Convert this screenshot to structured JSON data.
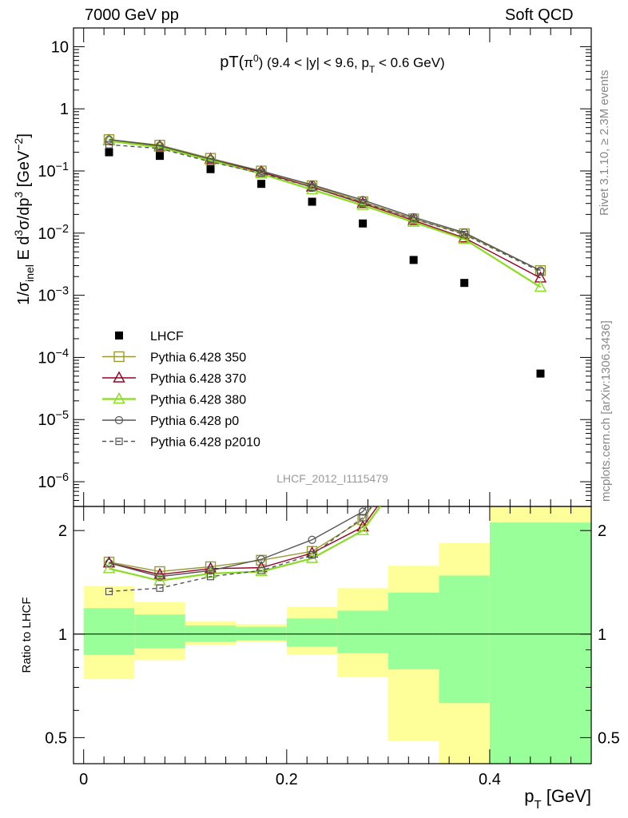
{
  "header": {
    "left": "7000 GeV pp",
    "right": "Soft QCD"
  },
  "side_labels": {
    "rivet": "Rivet 3.1.10, ≥ 2.3M events",
    "mcplots": "mcplots.cern.ch [arXiv:1306.3436]"
  },
  "chart_data": [
    {
      "type": "scatter",
      "title": "pT(π⁰) (9.4 < |y| < 9.6, pT < 0.6 GeV)",
      "ylabel": "1/σinel E d³σ/dp³ [GeV⁻²]",
      "yscale": "log",
      "ylim": [
        4e-07,
        20
      ],
      "xlim": [
        -0.01,
        0.5
      ],
      "y_tick_labels": [
        "10",
        "1",
        "10⁻¹",
        "10⁻²",
        "10⁻³",
        "10⁻⁴",
        "10⁻⁵",
        "10⁻⁶"
      ],
      "watermark": "LHCF_2012_I1115479",
      "legend_position": "bottom-left",
      "x": [
        0.025,
        0.075,
        0.125,
        0.175,
        0.225,
        0.275,
        0.325,
        0.375,
        0.45
      ],
      "series": [
        {
          "name": "LHCF",
          "color": "#000000",
          "marker": "filled-square",
          "line": "none",
          "values": [
            0.2,
            0.175,
            0.107,
            0.062,
            0.032,
            0.0143,
            0.0037,
            0.00158,
            5.5e-05
          ]
        },
        {
          "name": "Pythia 6.428 350",
          "color": "#999933",
          "marker": "open-square",
          "line": "solid",
          "values": [
            0.32,
            0.26,
            0.16,
            0.1,
            0.058,
            0.032,
            0.017,
            0.0098,
            0.0025
          ]
        },
        {
          "name": "Pythia 6.428 370",
          "color": "#990022",
          "marker": "open-triangle",
          "line": "solid",
          "values": [
            0.31,
            0.25,
            0.155,
            0.096,
            0.055,
            0.03,
            0.016,
            0.0084,
            0.0019
          ]
        },
        {
          "name": "Pythia 6.428 380",
          "color": "#88dd22",
          "marker": "open-triangle",
          "line": "solid",
          "values": [
            0.305,
            0.24,
            0.148,
            0.09,
            0.05,
            0.028,
            0.015,
            0.008,
            0.00135
          ]
        },
        {
          "name": "Pythia 6.428 p0",
          "color": "#555555",
          "marker": "open-circle",
          "line": "solid",
          "values": [
            0.32,
            0.255,
            0.155,
            0.1,
            0.06,
            0.034,
            0.018,
            0.0102,
            0.0025
          ]
        },
        {
          "name": "Pythia 6.428 p2010",
          "color": "#555555",
          "marker": "open-square-small",
          "line": "dashed",
          "values": [
            0.265,
            0.23,
            0.14,
            0.092,
            0.055,
            0.031,
            0.017,
            0.0095,
            0.0024
          ]
        }
      ]
    },
    {
      "type": "line",
      "ylabel": "Ratio to LHCF",
      "xlabel": "pT [GeV]",
      "yscale": "log",
      "ylim": [
        0.42,
        2.35
      ],
      "xlim": [
        -0.01,
        0.5
      ],
      "y_tick_labels": [
        "2",
        "1",
        "0.5"
      ],
      "x_tick_labels": [
        "0",
        "0.2",
        "0.4"
      ],
      "uncertainty_bands": {
        "bins": [
          [
            0.0,
            0.05
          ],
          [
            0.05,
            0.1
          ],
          [
            0.1,
            0.15
          ],
          [
            0.15,
            0.2
          ],
          [
            0.2,
            0.25
          ],
          [
            0.25,
            0.3
          ],
          [
            0.3,
            0.35
          ],
          [
            0.35,
            0.4
          ],
          [
            0.4,
            0.5
          ]
        ],
        "stat_color": "#99ff99",
        "total_color": "#ffff99",
        "stat_lo": [
          0.87,
          0.91,
          0.95,
          0.96,
          0.92,
          0.88,
          0.79,
          0.63,
          0.3
        ],
        "stat_hi": [
          1.19,
          1.14,
          1.06,
          1.05,
          1.11,
          1.17,
          1.32,
          1.48,
          2.11
        ],
        "total_lo": [
          0.74,
          0.84,
          0.93,
          0.95,
          0.87,
          0.75,
          0.49,
          0.3,
          0.3
        ],
        "total_hi": [
          1.38,
          1.24,
          1.09,
          1.07,
          1.2,
          1.36,
          1.58,
          1.84,
          2.5
        ]
      },
      "x": [
        0.025,
        0.075,
        0.125,
        0.175,
        0.225,
        0.275,
        0.325
      ],
      "series": [
        {
          "name": "Pythia 6.428 350",
          "values": [
            1.62,
            1.52,
            1.57,
            1.64,
            1.74,
            2.15,
            3.5
          ]
        },
        {
          "name": "Pythia 6.428 370",
          "values": [
            1.61,
            1.49,
            1.55,
            1.56,
            1.72,
            2.05,
            3.3
          ]
        },
        {
          "name": "Pythia 6.428 380",
          "values": [
            1.55,
            1.43,
            1.5,
            1.52,
            1.66,
            2.0,
            3.2
          ]
        },
        {
          "name": "Pythia 6.428 p0",
          "values": [
            1.61,
            1.47,
            1.53,
            1.65,
            1.88,
            2.27,
            3.6
          ]
        },
        {
          "name": "Pythia 6.428 p2010",
          "values": [
            1.33,
            1.36,
            1.47,
            1.53,
            1.7,
            2.18,
            3.4
          ]
        }
      ]
    }
  ]
}
